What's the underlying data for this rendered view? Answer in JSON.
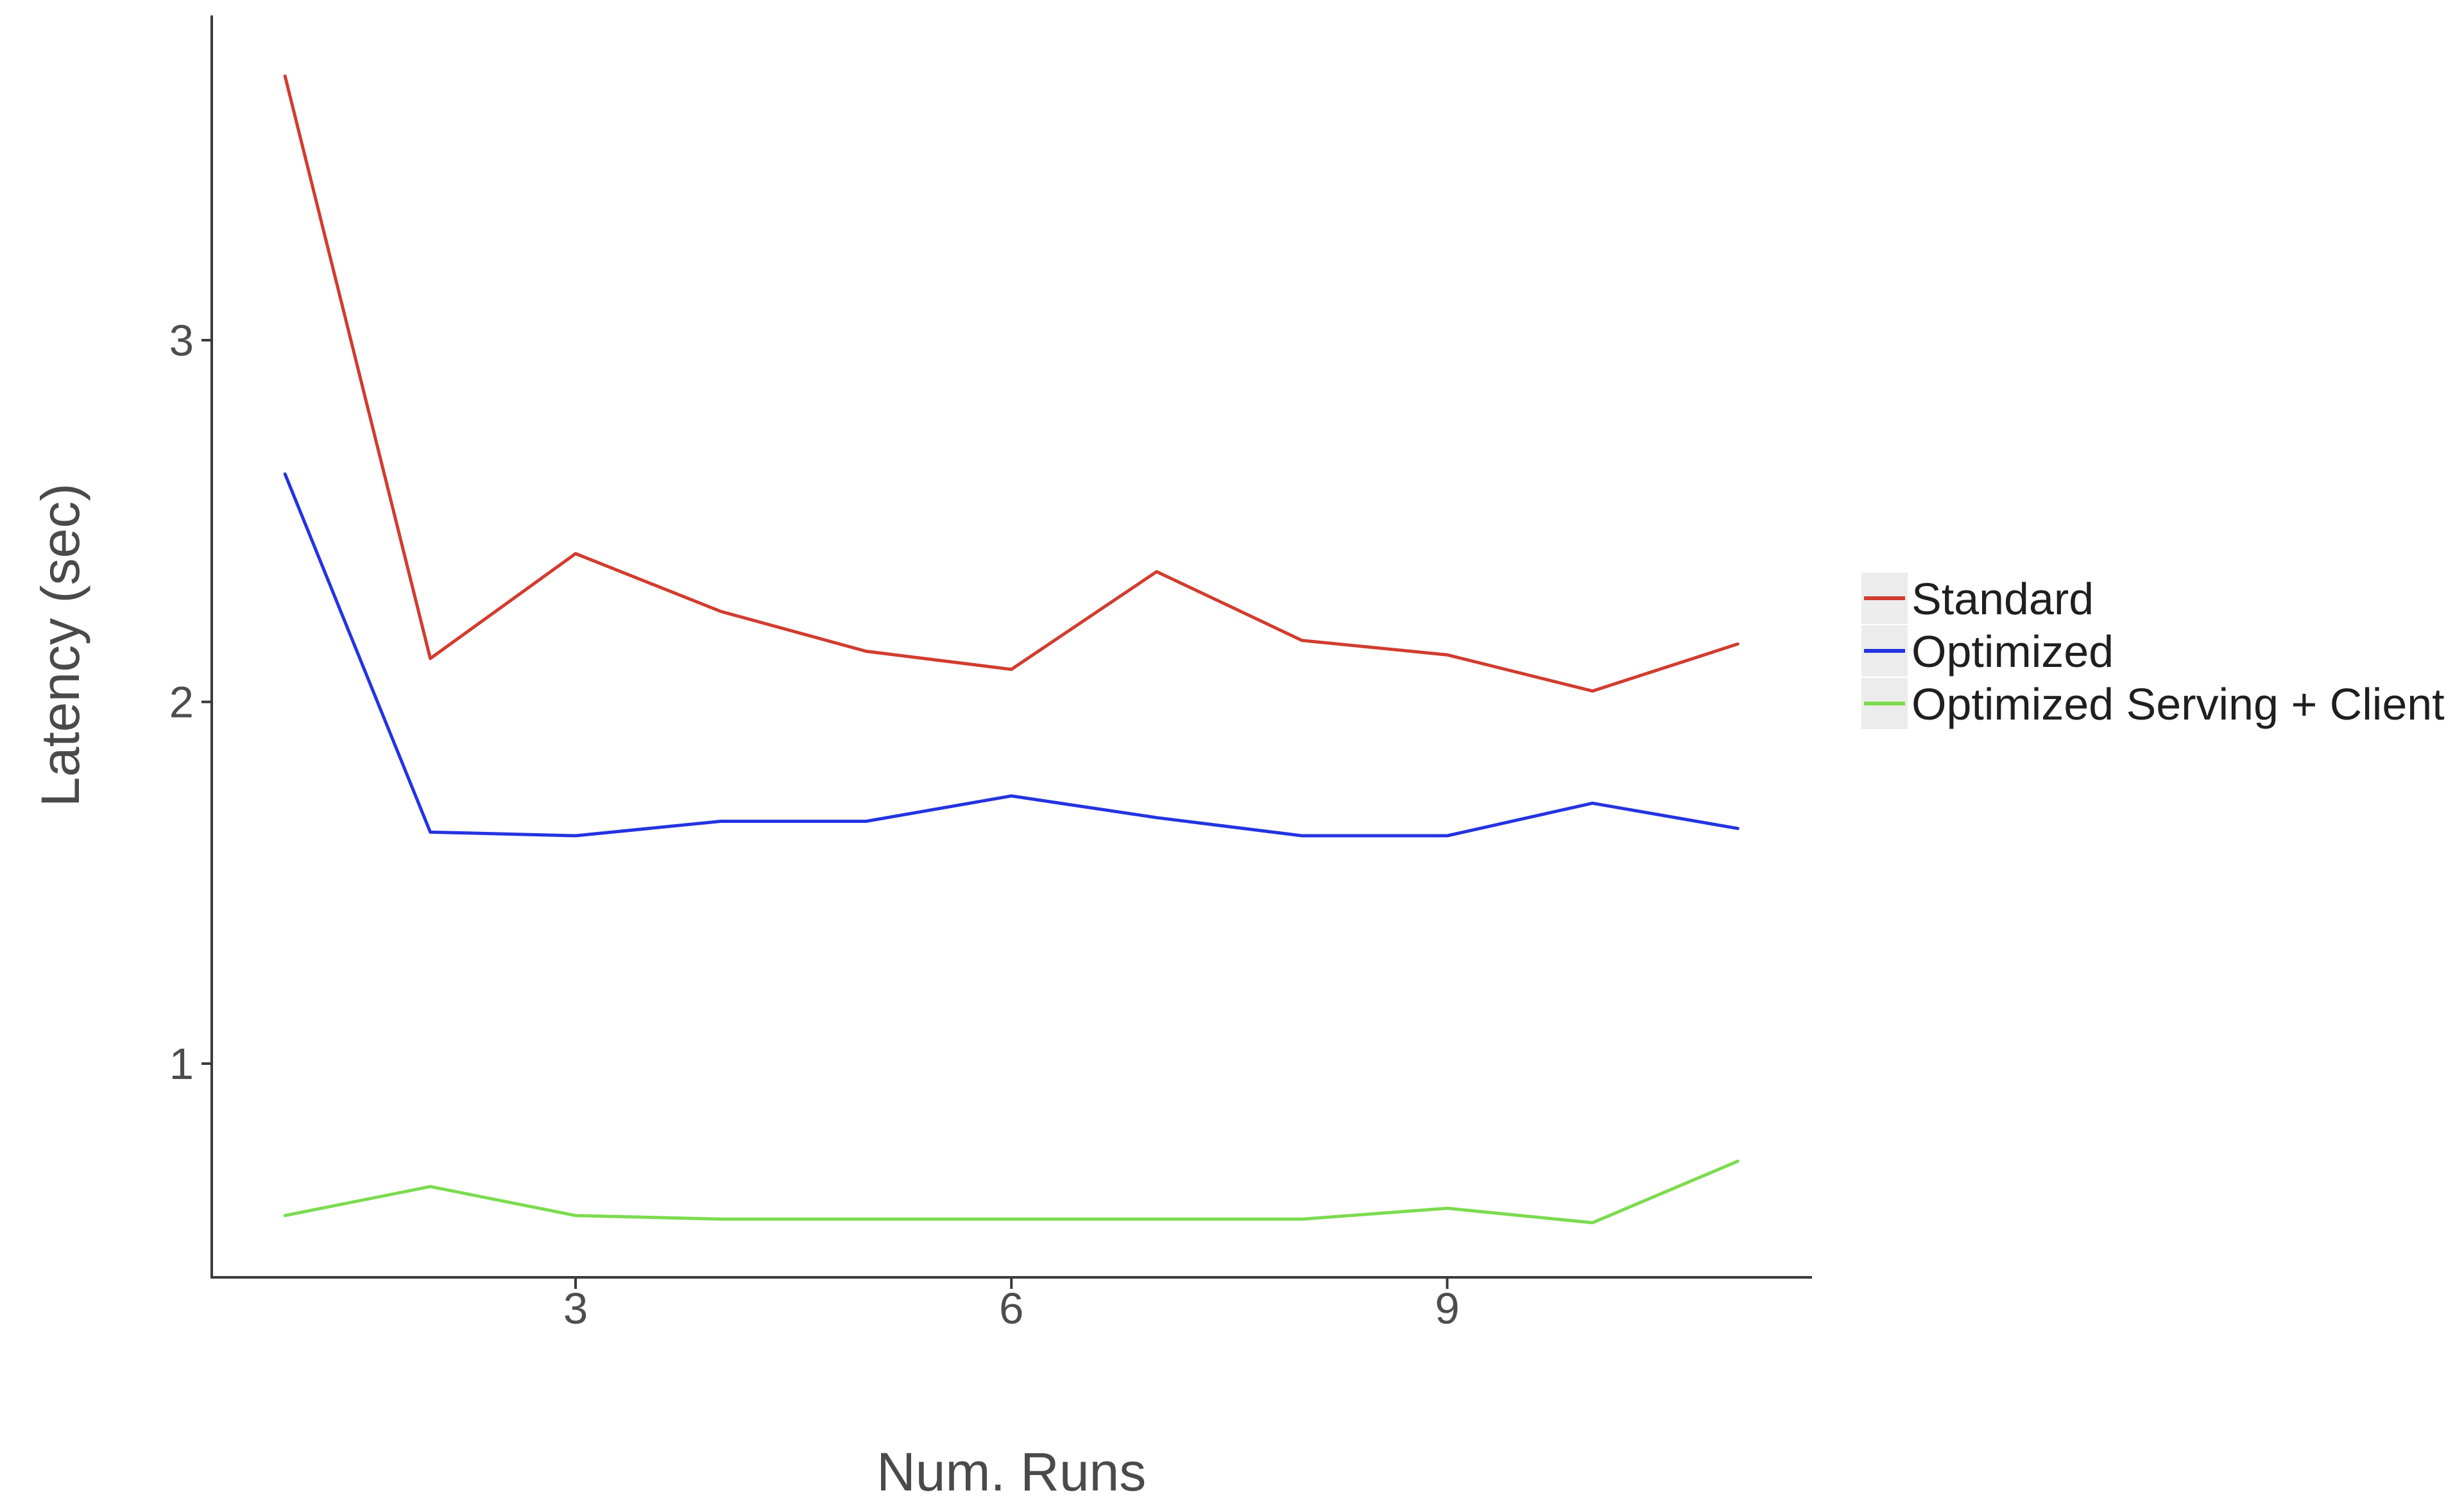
{
  "chart_data": {
    "type": "line",
    "title": "",
    "xlabel": "Num. Runs",
    "ylabel": "Latency (sec)",
    "x": [
      1,
      2,
      3,
      4,
      5,
      6,
      7,
      8,
      9,
      10,
      11
    ],
    "series": [
      {
        "name": "Standard",
        "color": "#d13c2f",
        "values": [
          3.73,
          2.12,
          2.41,
          2.25,
          2.14,
          2.09,
          2.36,
          2.17,
          2.13,
          2.03,
          2.16
        ]
      },
      {
        "name": "Optimized",
        "color": "#2433e0",
        "values": [
          2.63,
          1.64,
          1.63,
          1.67,
          1.67,
          1.74,
          1.68,
          1.63,
          1.63,
          1.72,
          1.65
        ]
      },
      {
        "name": "Optimized Serving + Client",
        "color": "#7cdb4f",
        "values": [
          0.58,
          0.66,
          0.58,
          0.57,
          0.57,
          0.57,
          0.57,
          0.57,
          0.6,
          0.56,
          0.73
        ]
      }
    ],
    "xticks": [
      "3",
      "6",
      "9"
    ],
    "xtick_values": [
      3,
      6,
      9
    ],
    "yticks": [
      "1",
      "2",
      "3"
    ],
    "ytick_values": [
      1,
      2,
      3
    ],
    "xlim": [
      0.5,
      11.5
    ],
    "ylim": [
      0.41,
      3.9
    ],
    "grid": false,
    "legend_position": "right"
  },
  "colors": {
    "background": "#ffffff",
    "axis": "#3b3b3b",
    "tick_text": "#4d4d4d",
    "legend_text": "#1f1f1f",
    "legend_key_fill": "#ececec"
  }
}
